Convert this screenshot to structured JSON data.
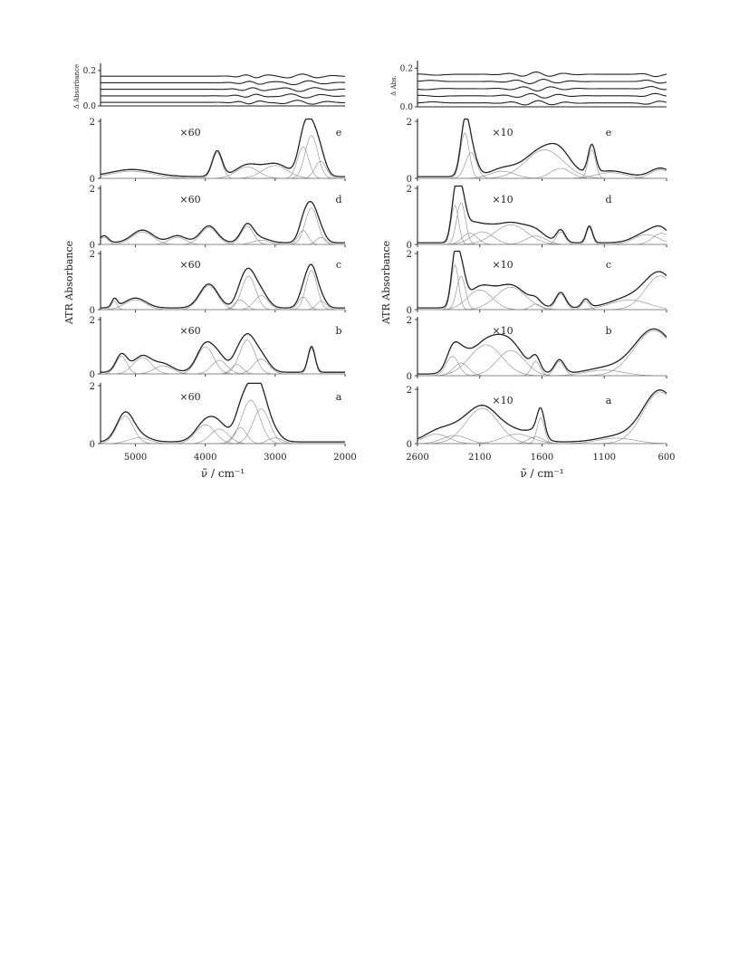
{
  "chart_data": [
    {
      "type": "line",
      "title": "",
      "xlabel": "ν̃ / cm⁻¹",
      "ylabel": "ATR Absorbance",
      "residual_ylabel": "Δ Absorbance",
      "xlim": [
        5500,
        2000
      ],
      "x_ticks": [
        "5000",
        "4000",
        "3000",
        "2000"
      ],
      "x_tick_values": [
        5000,
        4000,
        3000,
        2000
      ],
      "residual_ylim": [
        0,
        0.22
      ],
      "residual_ticks": [
        "0.0",
        "0.2"
      ],
      "residual_tick_values": [
        0,
        0.2
      ],
      "panels": [
        {
          "label": "e",
          "scale_label": "×60",
          "ylim": [
            0,
            2
          ],
          "y_ticks": [
            "0",
            "2"
          ],
          "peaks": [
            [
              5050,
              0.25,
              300
            ],
            [
              3830,
              0.9,
              70
            ],
            [
              3400,
              0.4,
              160
            ],
            [
              3000,
              0.45,
              180
            ],
            [
              2600,
              1.1,
              80
            ],
            [
              2480,
              1.5,
              90
            ],
            [
              2350,
              0.6,
              80
            ]
          ]
        },
        {
          "label": "d",
          "scale_label": "×60",
          "ylim": [
            0,
            2
          ],
          "y_ticks": [
            "0",
            "2"
          ],
          "peaks": [
            [
              5450,
              0.25,
              60
            ],
            [
              4900,
              0.45,
              150
            ],
            [
              4400,
              0.25,
              120
            ],
            [
              3950,
              0.6,
              120
            ],
            [
              3400,
              0.65,
              90
            ],
            [
              3200,
              0.15,
              120
            ],
            [
              2600,
              0.5,
              70
            ],
            [
              2480,
              1.3,
              90
            ],
            [
              2340,
              0.25,
              70
            ]
          ]
        },
        {
          "label": "c",
          "scale_label": "×60",
          "ylim": [
            0,
            2
          ],
          "y_ticks": [
            "0",
            "2"
          ],
          "peaks": [
            [
              5300,
              0.3,
              40
            ],
            [
              5000,
              0.35,
              150
            ],
            [
              3950,
              0.85,
              130
            ],
            [
              3500,
              0.35,
              80
            ],
            [
              3380,
              1.2,
              100
            ],
            [
              3200,
              0.5,
              100
            ],
            [
              2600,
              0.45,
              70
            ],
            [
              2480,
              1.4,
              80
            ],
            [
              2340,
              0.3,
              70
            ]
          ]
        },
        {
          "label": "b",
          "scale_label": "×60",
          "ylim": [
            0,
            2
          ],
          "y_ticks": [
            "0",
            "2"
          ],
          "peaks": [
            [
              5200,
              0.65,
              80
            ],
            [
              4900,
              0.6,
              130
            ],
            [
              4600,
              0.3,
              130
            ],
            [
              4000,
              1.0,
              120
            ],
            [
              3800,
              0.5,
              110
            ],
            [
              3550,
              0.35,
              80
            ],
            [
              3400,
              1.25,
              110
            ],
            [
              3200,
              0.55,
              110
            ],
            [
              2480,
              0.95,
              50
            ]
          ]
        },
        {
          "label": "a",
          "scale_label": "×60",
          "ylim": [
            0,
            2
          ],
          "y_ticks": [
            "0",
            "2"
          ],
          "peaks": [
            [
              5150,
              0.95,
              120
            ],
            [
              4950,
              0.2,
              150
            ],
            [
              4000,
              0.65,
              140
            ],
            [
              3800,
              0.5,
              130
            ],
            [
              3500,
              0.55,
              90
            ],
            [
              3350,
              1.5,
              130
            ],
            [
              3200,
              1.2,
              120
            ],
            [
              3000,
              0.2,
              100
            ]
          ]
        }
      ]
    },
    {
      "type": "line",
      "title": "",
      "xlabel": "ν̃ / cm⁻¹",
      "ylabel": "ATR Absorbance",
      "residual_ylabel": "Δ Abs.",
      "xlim": [
        2600,
        600
      ],
      "x_ticks": [
        "2600",
        "2100",
        "1600",
        "1100",
        "600"
      ],
      "x_tick_values": [
        2600,
        2100,
        1600,
        1100,
        600
      ],
      "residual_ylim": [
        0,
        0.22
      ],
      "residual_ticks": [
        "0.0",
        "0.2"
      ],
      "residual_tick_values": [
        0,
        0.2
      ],
      "panels": [
        {
          "label": "e",
          "scale_label": "×10",
          "ylim": [
            0,
            2
          ],
          "y_ticks": [
            "0",
            "2"
          ],
          "peaks": [
            [
              2220,
              1.6,
              35
            ],
            [
              2170,
              0.9,
              45
            ],
            [
              1920,
              0.25,
              100
            ],
            [
              1580,
              1.0,
              150
            ],
            [
              1450,
              0.35,
              80
            ],
            [
              1200,
              1.0,
              30
            ],
            [
              1050,
              0.2,
              120
            ],
            [
              650,
              0.3,
              80
            ]
          ]
        },
        {
          "label": "d",
          "scale_label": "×10",
          "ylim": [
            0,
            2
          ],
          "y_ticks": [
            "0",
            "2"
          ],
          "peaks": [
            [
              2300,
              1.4,
              30
            ],
            [
              2250,
              1.5,
              35
            ],
            [
              2180,
              0.4,
              60
            ],
            [
              2080,
              0.45,
              90
            ],
            [
              1850,
              0.7,
              130
            ],
            [
              1650,
              0.3,
              80
            ],
            [
              1450,
              0.45,
              35
            ],
            [
              1220,
              0.6,
              25
            ],
            [
              760,
              0.35,
              100
            ],
            [
              640,
              0.4,
              70
            ]
          ]
        },
        {
          "label": "c",
          "scale_label": "×10",
          "ylim": [
            0,
            2
          ],
          "y_ticks": [
            "0",
            "2"
          ],
          "peaks": [
            [
              2300,
              1.6,
              30
            ],
            [
              2250,
              1.2,
              35
            ],
            [
              2100,
              0.7,
              100
            ],
            [
              1850,
              0.8,
              120
            ],
            [
              1650,
              0.2,
              40
            ],
            [
              1450,
              0.55,
              40
            ],
            [
              1250,
              0.3,
              30
            ],
            [
              900,
              0.35,
              150
            ],
            [
              650,
              1.2,
              120
            ]
          ]
        },
        {
          "label": "b",
          "scale_label": "×10",
          "ylim": [
            0,
            2
          ],
          "y_ticks": [
            "0",
            "2"
          ],
          "peaks": [
            [
              2320,
              0.7,
              50
            ],
            [
              2250,
              0.45,
              60
            ],
            [
              2050,
              1.1,
              130
            ],
            [
              1850,
              0.9,
              110
            ],
            [
              1650,
              0.5,
              35
            ],
            [
              1460,
              0.5,
              40
            ],
            [
              1100,
              0.2,
              150
            ],
            [
              700,
              1.6,
              160
            ]
          ]
        },
        {
          "label": "a",
          "scale_label": "×10",
          "ylim": [
            0,
            2
          ],
          "y_ticks": [
            "0",
            "2"
          ],
          "peaks": [
            [
              2450,
              0.35,
              100
            ],
            [
              2300,
              0.3,
              100
            ],
            [
              2080,
              1.3,
              130
            ],
            [
              1800,
              0.35,
              120
            ],
            [
              1650,
              0.25,
              60
            ],
            [
              1610,
              0.95,
              30
            ],
            [
              1000,
              0.2,
              150
            ],
            [
              650,
              1.9,
              140
            ]
          ]
        }
      ]
    }
  ]
}
